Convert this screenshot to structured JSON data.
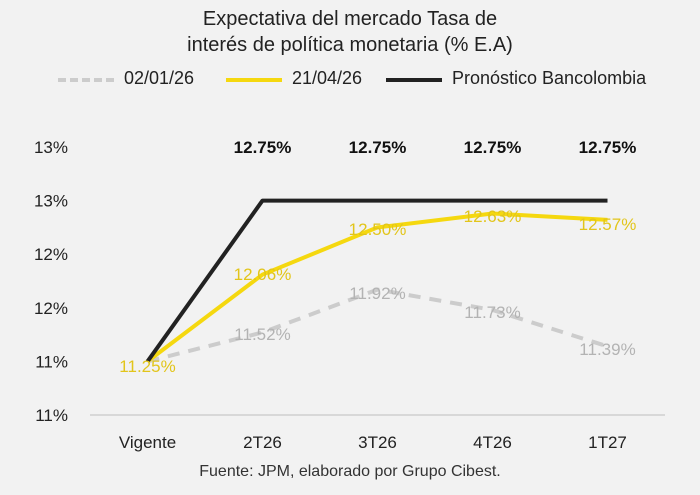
{
  "title_line1": "Expectativa del mercado Tasa de",
  "title_line2": "interés de política monetaria (% E.A)",
  "footer": "Fuente: JPM, elaborado por Grupo Cibest.",
  "chart_data": {
    "type": "line",
    "categories": [
      "Vigente",
      "2T26",
      "3T26",
      "4T26",
      "1T27"
    ],
    "series": [
      {
        "name": "02/01/26",
        "values": [
          11.25,
          11.52,
          11.92,
          11.73,
          11.39
        ],
        "labels": [
          "",
          "11.52%",
          "11.92%",
          "11.73%",
          "11.39%"
        ],
        "color": "#cccccc",
        "dash": true
      },
      {
        "name": "21/04/26",
        "values": [
          11.25,
          12.06,
          12.5,
          12.63,
          12.57
        ],
        "labels": [
          "11.25%",
          "12.06%",
          "12.50%",
          "12.63%",
          "12.57%"
        ],
        "color": "#f5d80f",
        "dash": false
      },
      {
        "name": "Pronóstico Bancolombia",
        "values": [
          11.25,
          12.75,
          12.75,
          12.75,
          12.75
        ],
        "labels": [
          "",
          "12.75%",
          "12.75%",
          "12.75%",
          "12.75%"
        ],
        "color": "#222222",
        "dash": false
      }
    ],
    "y_tick_values": [
      10.75,
      11.25,
      11.75,
      12.25,
      12.75,
      13.25
    ],
    "y_tick_labels": [
      "11%",
      "11%",
      "12%",
      "12%",
      "13%",
      "13%"
    ],
    "ylim": [
      10.75,
      13.25
    ],
    "grid": false,
    "legend_position": "top"
  }
}
